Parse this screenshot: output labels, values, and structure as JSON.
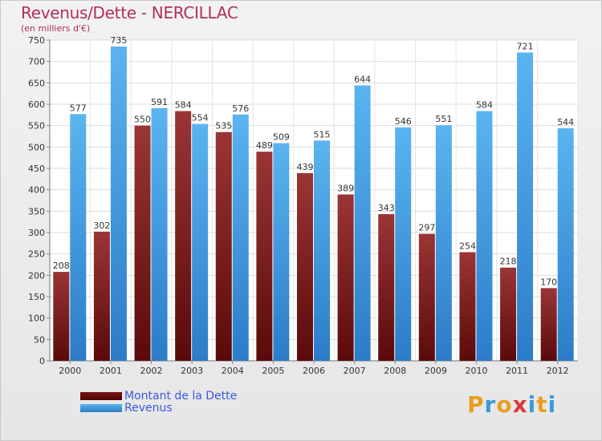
{
  "chart_data": {
    "type": "bar",
    "title": "Revenus/Dette - NERCILLAC",
    "subtitle": "(en milliers d'€)",
    "categories": [
      "2000",
      "2001",
      "2002",
      "2003",
      "2004",
      "2005",
      "2006",
      "2007",
      "2008",
      "2009",
      "2010",
      "2011",
      "2012"
    ],
    "series": [
      {
        "name": "Montant de la Dette",
        "color": "#8b1a1a",
        "values": [
          208,
          302,
          550,
          584,
          535,
          489,
          439,
          389,
          343,
          297,
          254,
          218,
          170
        ]
      },
      {
        "name": "Revenus",
        "color": "#4aa8e8",
        "values": [
          577,
          735,
          591,
          554,
          576,
          509,
          515,
          644,
          546,
          551,
          584,
          721,
          544
        ]
      }
    ],
    "ylim": [
      0,
      750
    ],
    "yticks": [
      0,
      50,
      100,
      150,
      200,
      250,
      300,
      350,
      400,
      450,
      500,
      550,
      600,
      650,
      700,
      750
    ],
    "grid": true,
    "legend_position": "bottom-left"
  },
  "logo": {
    "letters": [
      "P",
      "r",
      "o",
      "x",
      "i",
      "t",
      "i"
    ],
    "colors": [
      "#e8a020",
      "#3a9ad8",
      "#e8a020",
      "#d83a3a",
      "#3a9ad8",
      "#e8a020",
      "#3a9ad8"
    ]
  }
}
